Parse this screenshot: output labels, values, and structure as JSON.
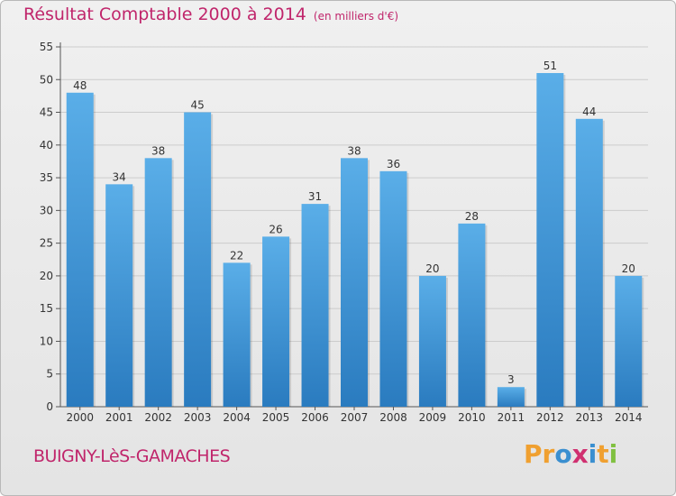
{
  "header": {
    "title": "Résultat Comptable 2000 à 2014",
    "unit": "(en milliers d'€)"
  },
  "footer": {
    "commune": "BUIGNY-LèS-GAMACHES",
    "logo_text": "Proxiti",
    "logo_colors": [
      "#f0a030",
      "#f0a030",
      "#3a8fd0",
      "#d03070",
      "#3a8fd0",
      "#f0a030",
      "#80c040"
    ]
  },
  "colors": {
    "accent": "#c0256b",
    "bar_top": "#5aaee8",
    "bar_bottom": "#2a7bbf",
    "grid": "#cccccc"
  },
  "chart_data": {
    "type": "bar",
    "title": "Résultat Comptable 2000 à 2014",
    "subtitle": "(en milliers d'€)",
    "xlabel": "",
    "ylabel": "",
    "categories": [
      "2000",
      "2001",
      "2002",
      "2003",
      "2004",
      "2005",
      "2006",
      "2007",
      "2008",
      "2009",
      "2010",
      "2011",
      "2012",
      "2013",
      "2014"
    ],
    "values": [
      48,
      34,
      38,
      45,
      22,
      26,
      31,
      38,
      36,
      20,
      28,
      3,
      51,
      44,
      20
    ],
    "ylim": [
      0,
      55
    ],
    "yticks": [
      0,
      5,
      10,
      15,
      20,
      25,
      30,
      35,
      40,
      45,
      50,
      55
    ],
    "grid": true,
    "data_labels": true
  }
}
